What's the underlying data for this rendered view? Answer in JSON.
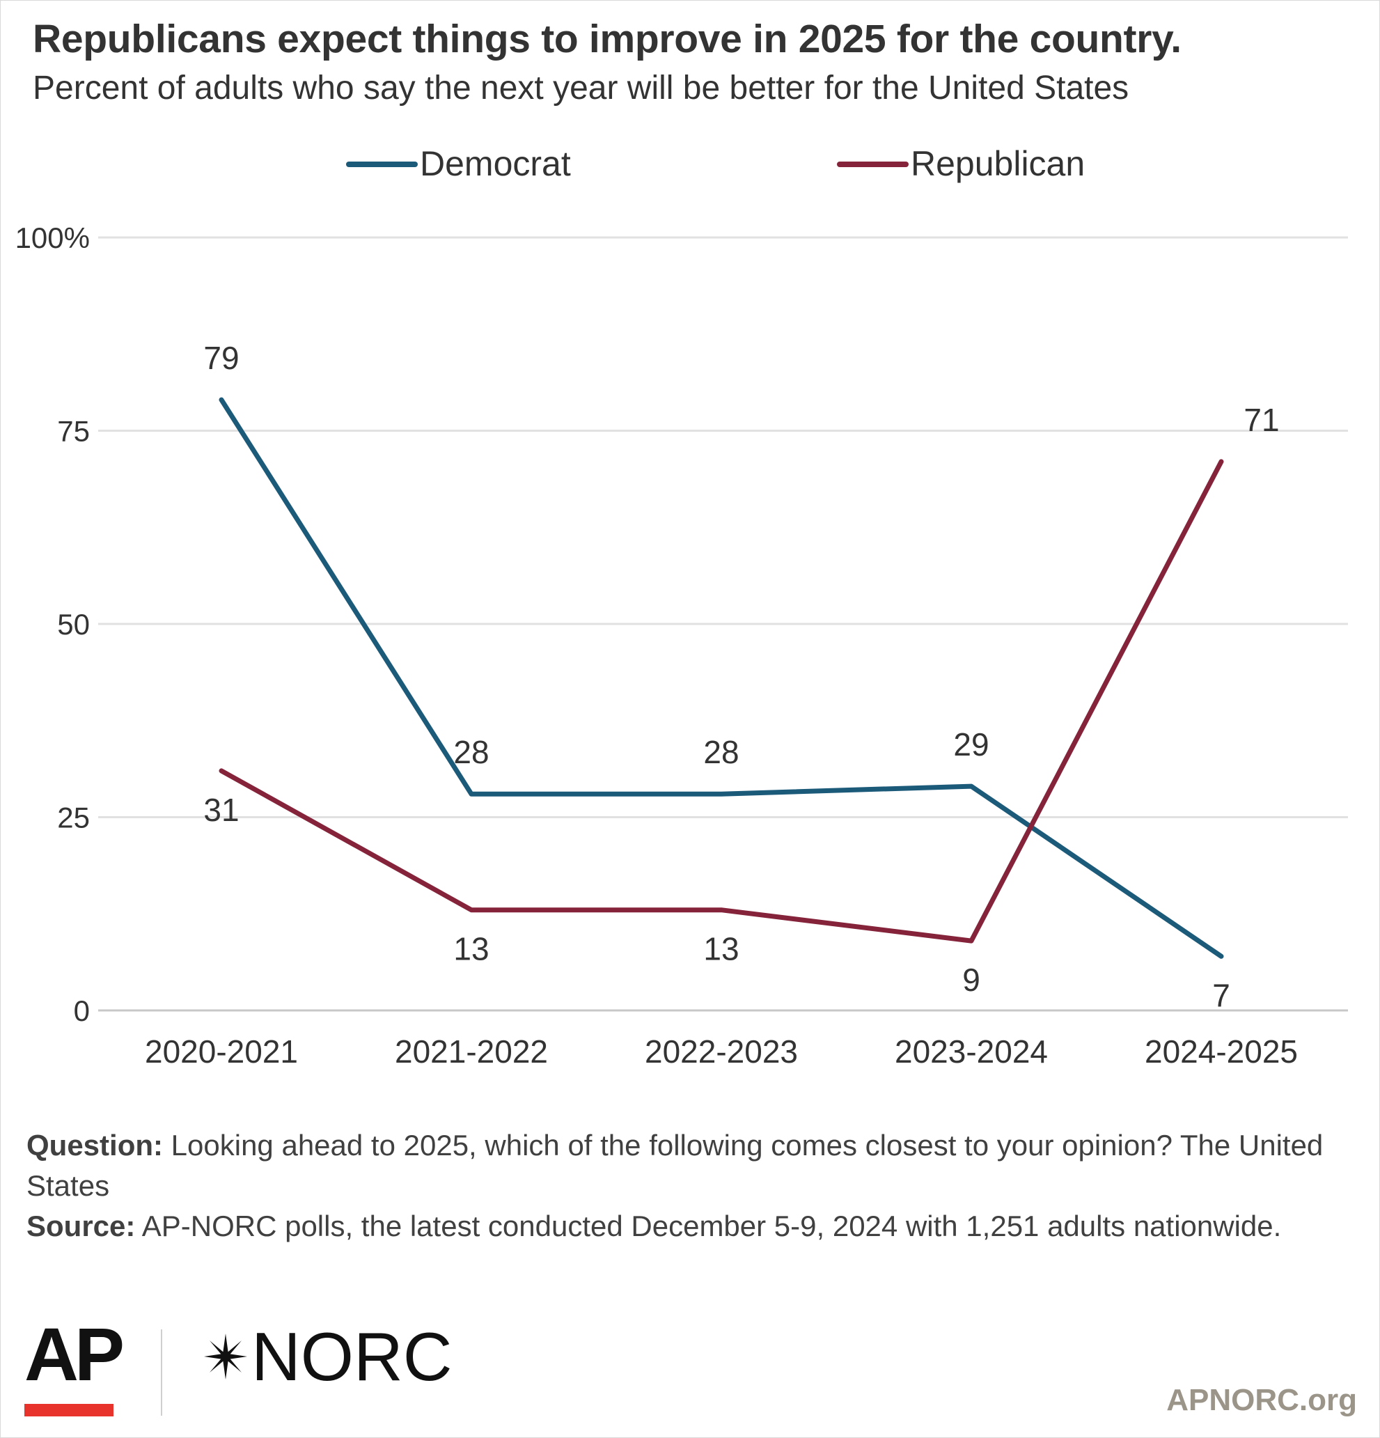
{
  "header": {
    "title": "Republicans expect things to improve in 2025 for the country.",
    "subtitle": "Percent of adults who say the next year will be better for the United States"
  },
  "chart_data": {
    "type": "line",
    "categories": [
      "2020-2021",
      "2021-2022",
      "2022-2023",
      "2023-2024",
      "2024-2025"
    ],
    "series": [
      {
        "name": "Democrat",
        "color": "#1c5a7a",
        "values": [
          79,
          28,
          28,
          29,
          7
        ]
      },
      {
        "name": "Republican",
        "color": "#85233a",
        "values": [
          31,
          13,
          13,
          9,
          71
        ]
      }
    ],
    "y_ticks": [
      "0",
      "25",
      "50",
      "75",
      "100%"
    ],
    "ylim": [
      0,
      100
    ],
    "grid": true,
    "legend_position": "top-center",
    "data_labels": true
  },
  "notes": {
    "question_label": "Question:",
    "question_text": "Looking ahead to 2025, which of the following comes closest to your opinion? The United States",
    "source_label": "Source:",
    "source_text": "AP-NORC polls, the latest conducted December 5-9, 2024 with 1,251 adults nationwide."
  },
  "footer": {
    "ap_logo": "AP",
    "norc_logo": "NORC",
    "norc_icon": "asterisk-star-icon",
    "website": "APNORC.org",
    "ap_accent": "#e8322c"
  }
}
